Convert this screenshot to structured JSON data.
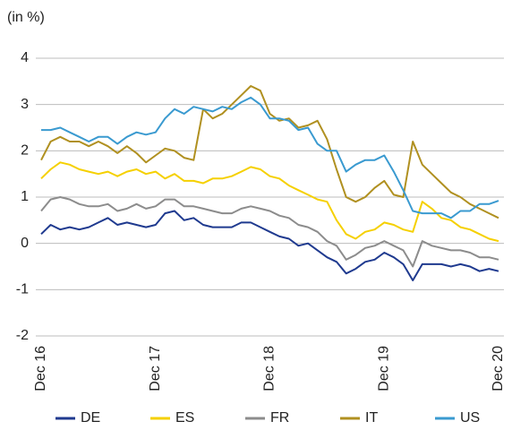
{
  "chart_data": {
    "type": "line",
    "title": "(in %)",
    "categories": [
      "Dec 16",
      null,
      null,
      null,
      null,
      null,
      null,
      null,
      null,
      null,
      null,
      null,
      "Dec 17",
      null,
      null,
      null,
      null,
      null,
      null,
      null,
      null,
      null,
      null,
      null,
      "Dec 18",
      null,
      null,
      null,
      null,
      null,
      null,
      null,
      null,
      null,
      null,
      null,
      "Dec 19",
      null,
      null,
      null,
      null,
      null,
      null,
      null,
      null,
      null,
      null,
      null,
      "Dec 20"
    ],
    "ylim": [
      -2,
      4
    ],
    "yticks": [
      -2,
      -1,
      0,
      1,
      2,
      3,
      4
    ],
    "grid": true,
    "legend": "bottom",
    "series": [
      {
        "name": "DE",
        "color": "#1f3a8f",
        "values": [
          0.2,
          0.4,
          0.3,
          0.35,
          0.3,
          0.35,
          0.45,
          0.55,
          0.4,
          0.45,
          0.4,
          0.35,
          0.4,
          0.65,
          0.7,
          0.5,
          0.55,
          0.4,
          0.35,
          0.35,
          0.35,
          0.45,
          0.45,
          0.35,
          0.25,
          0.15,
          0.1,
          -0.05,
          0.0,
          -0.15,
          -0.3,
          -0.4,
          -0.65,
          -0.55,
          -0.4,
          -0.35,
          -0.2,
          -0.3,
          -0.45,
          -0.8,
          -0.45,
          -0.45,
          -0.45,
          -0.5,
          -0.45,
          -0.5,
          -0.6,
          -0.55,
          -0.6
        ]
      },
      {
        "name": "ES",
        "color": "#f5d000",
        "values": [
          1.4,
          1.6,
          1.75,
          1.7,
          1.6,
          1.55,
          1.5,
          1.55,
          1.45,
          1.55,
          1.6,
          1.5,
          1.55,
          1.4,
          1.5,
          1.35,
          1.35,
          1.3,
          1.4,
          1.4,
          1.45,
          1.55,
          1.65,
          1.6,
          1.45,
          1.4,
          1.25,
          1.15,
          1.05,
          0.95,
          0.9,
          0.5,
          0.2,
          0.1,
          0.25,
          0.3,
          0.45,
          0.4,
          0.3,
          0.25,
          0.9,
          0.75,
          0.55,
          0.5,
          0.35,
          0.3,
          0.2,
          0.1,
          0.05
        ]
      },
      {
        "name": "FR",
        "color": "#8c8c8c",
        "values": [
          0.7,
          0.95,
          1.0,
          0.95,
          0.85,
          0.8,
          0.8,
          0.85,
          0.7,
          0.75,
          0.85,
          0.75,
          0.8,
          0.95,
          0.95,
          0.8,
          0.8,
          0.75,
          0.7,
          0.65,
          0.65,
          0.75,
          0.8,
          0.75,
          0.7,
          0.6,
          0.55,
          0.4,
          0.35,
          0.25,
          0.05,
          -0.05,
          -0.35,
          -0.25,
          -0.1,
          -0.05,
          0.05,
          -0.05,
          -0.15,
          -0.5,
          0.05,
          -0.05,
          -0.1,
          -0.15,
          -0.15,
          -0.2,
          -0.3,
          -0.3,
          -0.35
        ]
      },
      {
        "name": "IT",
        "color": "#b09020",
        "values": [
          1.8,
          2.2,
          2.3,
          2.2,
          2.2,
          2.1,
          2.2,
          2.1,
          1.95,
          2.1,
          1.95,
          1.75,
          1.9,
          2.05,
          2.0,
          1.85,
          1.8,
          2.9,
          2.7,
          2.8,
          3.0,
          3.2,
          3.4,
          3.3,
          2.8,
          2.65,
          2.7,
          2.5,
          2.55,
          2.65,
          2.25,
          1.6,
          1.0,
          0.9,
          1.0,
          1.2,
          1.35,
          1.05,
          1.0,
          2.2,
          1.7,
          1.5,
          1.3,
          1.1,
          1.0,
          0.85,
          0.75,
          0.65,
          0.55
        ]
      },
      {
        "name": "US",
        "color": "#3a9ad0",
        "values": [
          2.45,
          2.45,
          2.5,
          2.4,
          2.3,
          2.2,
          2.3,
          2.3,
          2.15,
          2.3,
          2.4,
          2.35,
          2.4,
          2.7,
          2.9,
          2.8,
          2.95,
          2.9,
          2.85,
          2.95,
          2.9,
          3.05,
          3.15,
          3.0,
          2.7,
          2.7,
          2.65,
          2.45,
          2.5,
          2.15,
          2.0,
          2.0,
          1.55,
          1.7,
          1.8,
          1.8,
          1.9,
          1.55,
          1.15,
          0.7,
          0.65,
          0.65,
          0.65,
          0.55,
          0.7,
          0.7,
          0.85,
          0.85,
          0.92
        ]
      }
    ]
  }
}
